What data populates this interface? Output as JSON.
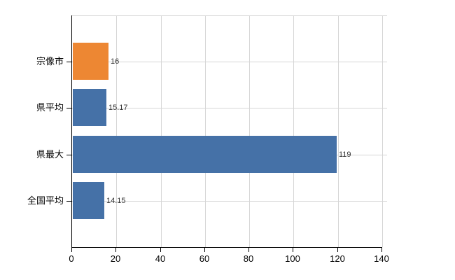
{
  "chart_data": {
    "type": "bar",
    "orientation": "horizontal",
    "title": "",
    "xlabel": "",
    "ylabel": "",
    "categories": [
      "宗像市",
      "県平均",
      "県最大",
      "全国平均"
    ],
    "values": [
      16,
      15.17,
      119,
      14.15
    ],
    "value_labels": [
      "16",
      "15.17",
      "119",
      "14.15"
    ],
    "bar_colors": [
      "#ed8733",
      "#4571a7",
      "#4571a7",
      "#4571a7"
    ],
    "xlim": [
      0,
      140
    ],
    "x_ticks": [
      0,
      20,
      40,
      60,
      80,
      100,
      120,
      140
    ],
    "grid": "on",
    "legend": "none",
    "colors": {
      "highlight_bar": "#ed8733",
      "default_bar": "#4571a7",
      "gridline": "#d6d6d6",
      "axis": "#000000",
      "value_label_text": "#333333",
      "tick_label_text": "#000000",
      "background": "#ffffff"
    }
  }
}
